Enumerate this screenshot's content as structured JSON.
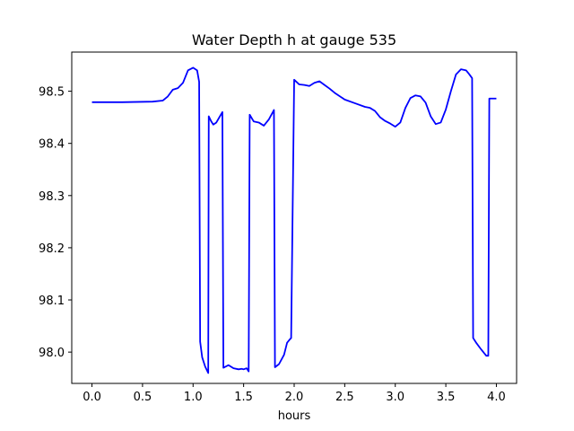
{
  "chart_data": {
    "type": "line",
    "title": "Water Depth h at gauge 535",
    "xlabel": "hours",
    "ylabel": "",
    "xlim": [
      -0.2,
      4.2
    ],
    "ylim": [
      97.94,
      98.575
    ],
    "grid": false,
    "x_ticks": [
      0.0,
      0.5,
      1.0,
      1.5,
      2.0,
      2.5,
      3.0,
      3.5,
      4.0
    ],
    "x_tick_labels": [
      "0.0",
      "0.5",
      "1.0",
      "1.5",
      "2.0",
      "2.5",
      "3.0",
      "3.5",
      "4.0"
    ],
    "y_ticks": [
      98.0,
      98.1,
      98.2,
      98.3,
      98.4,
      98.5
    ],
    "y_tick_labels": [
      "98.0",
      "98.1",
      "98.2",
      "98.3",
      "98.4",
      "98.5"
    ],
    "line_color": "#0000ff",
    "series": [
      {
        "x": [
          0.0,
          0.3,
          0.6,
          0.7,
          0.75,
          0.8,
          0.85,
          0.9,
          0.95,
          1.0,
          1.04,
          1.06,
          1.07,
          1.09,
          1.12,
          1.15,
          1.155,
          1.18,
          1.2,
          1.23,
          1.26,
          1.29,
          1.3,
          1.35,
          1.4,
          1.45,
          1.48,
          1.5,
          1.53,
          1.55,
          1.56,
          1.6,
          1.65,
          1.7,
          1.75,
          1.8,
          1.81,
          1.85,
          1.9,
          1.93,
          1.96,
          1.97,
          2.0,
          2.05,
          2.1,
          2.15,
          2.2,
          2.25,
          2.3,
          2.35,
          2.4,
          2.5,
          2.6,
          2.7,
          2.75,
          2.8,
          2.85,
          2.9,
          2.95,
          3.0,
          3.05,
          3.1,
          3.15,
          3.2,
          3.25,
          3.3,
          3.35,
          3.4,
          3.45,
          3.5,
          3.55,
          3.6,
          3.65,
          3.7,
          3.73,
          3.76,
          3.77,
          3.8,
          3.85,
          3.9,
          3.92,
          3.93,
          3.95,
          4.0
        ],
        "y": [
          98.479,
          98.479,
          98.48,
          98.482,
          98.49,
          98.503,
          98.506,
          98.516,
          98.54,
          98.545,
          98.54,
          98.518,
          98.02,
          97.99,
          97.972,
          97.96,
          98.452,
          98.442,
          98.436,
          98.44,
          98.45,
          98.46,
          97.97,
          97.975,
          97.969,
          97.967,
          97.968,
          97.967,
          97.969,
          97.963,
          98.455,
          98.442,
          98.44,
          98.434,
          98.446,
          98.464,
          97.971,
          97.977,
          97.995,
          98.018,
          98.025,
          98.027,
          98.522,
          98.513,
          98.512,
          98.51,
          98.516,
          98.519,
          98.512,
          98.505,
          98.497,
          98.484,
          98.477,
          98.47,
          98.468,
          98.462,
          98.45,
          98.443,
          98.438,
          98.432,
          98.44,
          98.468,
          98.487,
          98.492,
          98.49,
          98.478,
          98.452,
          98.437,
          98.44,
          98.465,
          98.5,
          98.532,
          98.542,
          98.54,
          98.533,
          98.525,
          98.027,
          98.018,
          98.005,
          97.993,
          97.993,
          98.486,
          98.486,
          98.486
        ]
      }
    ]
  }
}
